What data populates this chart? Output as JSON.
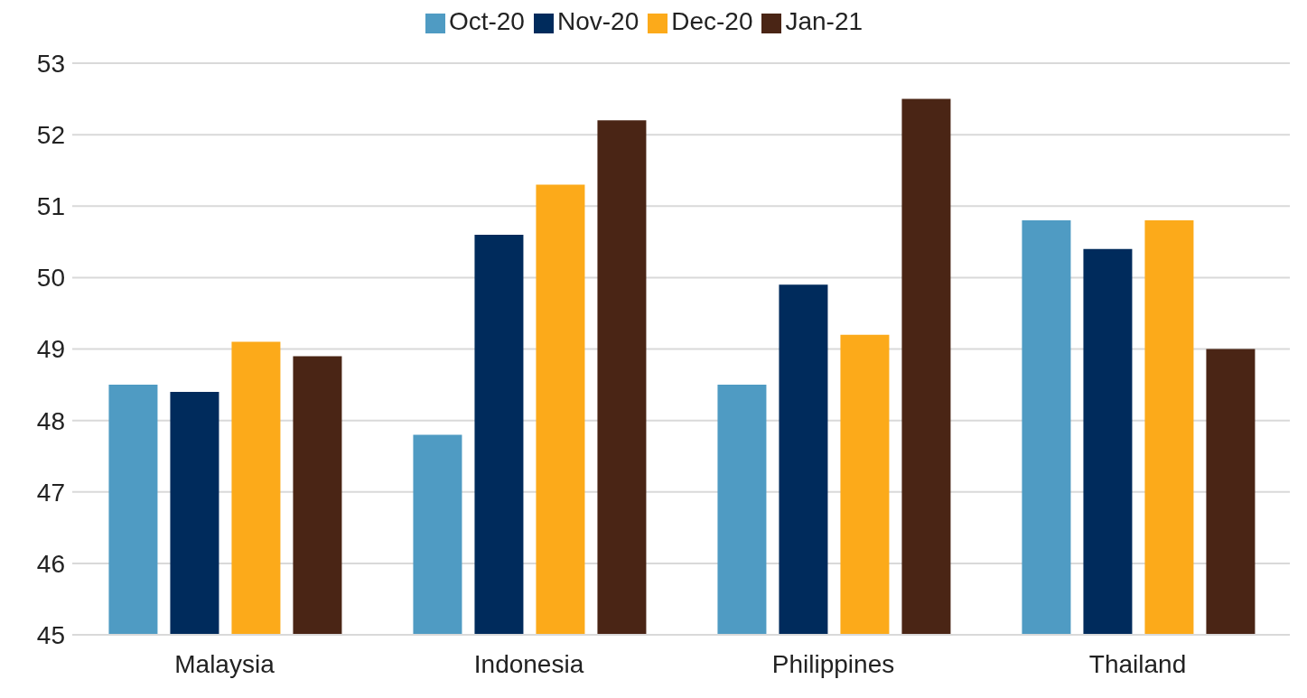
{
  "chart_data": {
    "type": "bar",
    "categories": [
      "Malaysia",
      "Indonesia",
      "Philippines",
      "Thailand"
    ],
    "series": [
      {
        "name": "Oct-20",
        "color": "#4f9bc3",
        "values": [
          48.5,
          47.8,
          48.5,
          50.8
        ]
      },
      {
        "name": "Nov-20",
        "color": "#002b5c",
        "values": [
          48.4,
          50.6,
          49.9,
          50.4
        ]
      },
      {
        "name": "Dec-20",
        "color": "#fcaa1a",
        "values": [
          49.1,
          51.3,
          49.2,
          50.8
        ]
      },
      {
        "name": "Jan-21",
        "color": "#4a2515",
        "values": [
          48.9,
          52.2,
          52.5,
          49.0
        ]
      }
    ],
    "ylim": [
      45,
      53
    ],
    "yticks": [
      45,
      46,
      47,
      48,
      49,
      50,
      51,
      52,
      53
    ],
    "grid": "y",
    "legend": "top"
  }
}
